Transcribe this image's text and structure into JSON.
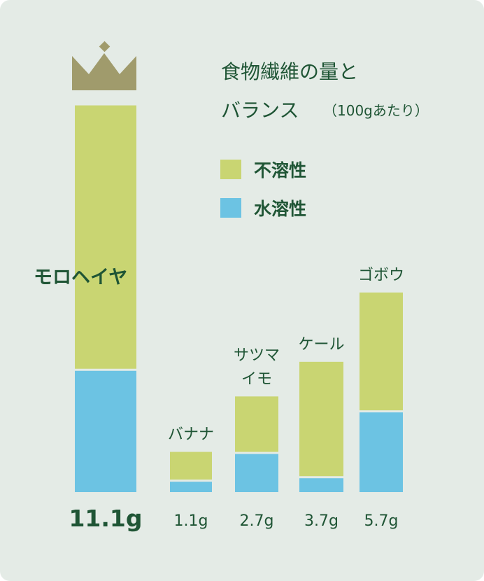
{
  "chart_data": {
    "type": "bar",
    "stacked": true,
    "title": "食物繊維の量とバランス",
    "subtitle": "（100gあたり）",
    "categories": [
      "モロヘイヤ",
      "バナナ",
      "サツマイモ",
      "ケール",
      "ゴボウ"
    ],
    "category_lines": [
      [
        "モロヘイヤ"
      ],
      [
        "バナナ"
      ],
      [
        "サツマ",
        "イモ"
      ],
      [
        "ケール"
      ],
      [
        "ゴボウ"
      ]
    ],
    "totals": [
      "11.1g",
      "1.1g",
      "2.7g",
      "3.7g",
      "5.7g"
    ],
    "total_values": [
      11.1,
      1.1,
      2.7,
      3.7,
      5.7
    ],
    "series": [
      {
        "name": "不溶性",
        "color": "#c9d572",
        "values": [
          7.6,
          0.8,
          1.6,
          3.3,
          3.4
        ]
      },
      {
        "name": "水溶性",
        "color": "#6cc3e3",
        "values": [
          3.5,
          0.3,
          1.1,
          0.4,
          2.3
        ]
      }
    ],
    "legend_position": "top-right",
    "grid": false,
    "winner_index": 0,
    "winner_icon": "crown-icon"
  },
  "colors": {
    "background": "#e4ebe6",
    "text": "#1f5535",
    "insoluble": "#c9d572",
    "soluble": "#6cc3e3",
    "crown": "#a09b6c"
  }
}
